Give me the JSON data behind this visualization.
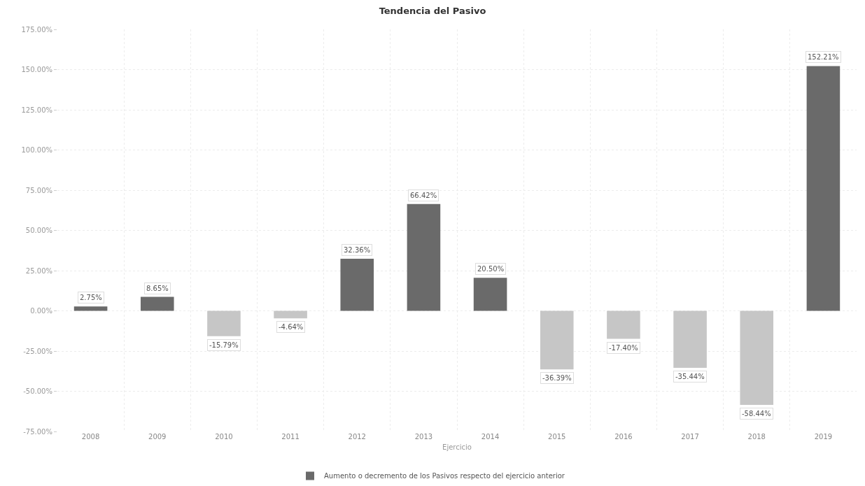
{
  "chart_data": {
    "type": "bar",
    "title": "Tendencia del Pasivo",
    "xlabel": "Ejercicio",
    "categories": [
      "2008",
      "2009",
      "2010",
      "2011",
      "2012",
      "2013",
      "2014",
      "2015",
      "2016",
      "2017",
      "2018",
      "2019"
    ],
    "series": [
      {
        "name": "Aumento o decremento de los Pasivos respecto del ejercicio anterior",
        "values": [
          2.75,
          8.65,
          -15.79,
          -4.64,
          32.36,
          66.42,
          20.5,
          -36.39,
          -17.4,
          -35.44,
          -58.44,
          152.21
        ],
        "colors": [
          "#6a6a6a",
          "#6a6a6a",
          "#c6c6c6",
          "#c6c6c6",
          "#6a6a6a",
          "#6a6a6a",
          "#6a6a6a",
          "#c6c6c6",
          "#c6c6c6",
          "#c6c6c6",
          "#c6c6c6",
          "#6a6a6a"
        ],
        "value_labels": [
          "2.75%",
          "8.65%",
          "-15.79%",
          "-4.64%",
          "32.36%",
          "66.42%",
          "20.50%",
          "-36.39%",
          "-17.40%",
          "-35.44%",
          "-58.44%",
          "152.21%"
        ]
      }
    ],
    "ylim": [
      -75,
      175
    ],
    "yticks": [
      {
        "value": -75,
        "label": "-75.00%"
      },
      {
        "value": -50,
        "label": "-50.00%"
      },
      {
        "value": -25,
        "label": "-25.00%"
      },
      {
        "value": 0,
        "label": "0.00%"
      },
      {
        "value": 25,
        "label": "25.00%"
      },
      {
        "value": 50,
        "label": "50.00%"
      },
      {
        "value": 75,
        "label": "75.00%"
      },
      {
        "value": 100,
        "label": "100.00%"
      },
      {
        "value": 125,
        "label": "125.00%"
      },
      {
        "value": 150,
        "label": "150.00%"
      },
      {
        "value": 175,
        "label": "175.00%"
      }
    ],
    "grid": true,
    "legend": "bottom"
  }
}
